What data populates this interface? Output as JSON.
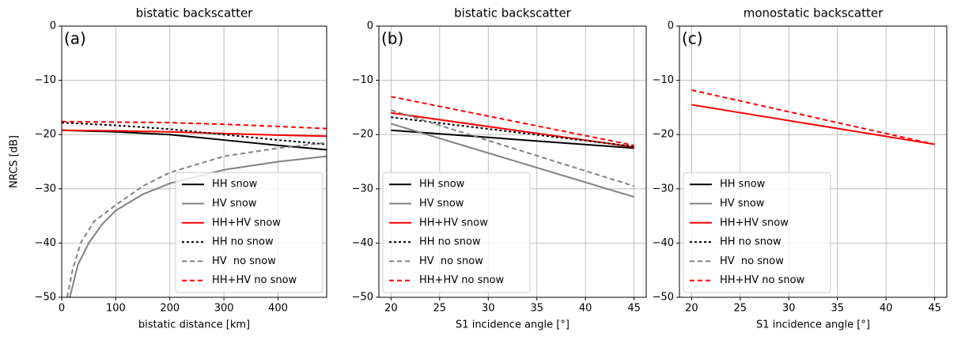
{
  "chart_data": [
    {
      "type": "line",
      "title": "bistatic backscatter",
      "annotation": "(a)",
      "xlabel": "bistatic distance [km]",
      "ylabel": "NRCS [dB]",
      "xlim": [
        0,
        490
      ],
      "xticks": [
        0,
        100,
        200,
        300,
        400
      ],
      "ylim": [
        -50,
        0
      ],
      "yticks": [
        {
          "value": -50,
          "label": "−50"
        },
        {
          "value": -40,
          "label": "−40"
        },
        {
          "value": -30,
          "label": "−30"
        },
        {
          "value": -20,
          "label": "−20"
        },
        {
          "value": -10,
          "label": "−10"
        },
        0
      ],
      "grid": true,
      "legend": "lower right",
      "series": [
        {
          "name": "HH snow",
          "color": "#000000",
          "linestyle": "solid",
          "x": [
            0,
            100,
            200,
            300,
            400,
            490
          ],
          "values": [
            -19.2,
            -19.5,
            -20,
            -21,
            -22,
            -22.8
          ]
        },
        {
          "name": "HV snow",
          "color": "#808080",
          "linestyle": "solid",
          "x": [
            15,
            30,
            50,
            75,
            100,
            150,
            200,
            300,
            400,
            490
          ],
          "values": [
            -50,
            -44,
            -40,
            -36.5,
            -34,
            -31,
            -29,
            -26.5,
            -25,
            -24
          ]
        },
        {
          "name": "HH+HV snow",
          "color": "#ff0000",
          "linestyle": "solid",
          "x": [
            0,
            100,
            200,
            300,
            400,
            490
          ],
          "values": [
            -19.2,
            -19.3,
            -19.5,
            -19.8,
            -20.1,
            -20.3
          ]
        },
        {
          "name": "HH no snow",
          "color": "#000000",
          "linestyle": "dotted",
          "x": [
            0,
            100,
            200,
            300,
            400,
            490
          ],
          "values": [
            -17.8,
            -18.3,
            -19,
            -20,
            -21,
            -21.8
          ]
        },
        {
          "name": "HV  no snow",
          "color": "#808080",
          "linestyle": "dashed",
          "x": [
            10,
            20,
            35,
            60,
            100,
            150,
            200,
            300,
            400,
            490
          ],
          "values": [
            -50,
            -45,
            -40,
            -36,
            -33,
            -29.5,
            -27,
            -24,
            -22.5,
            -21.5
          ]
        },
        {
          "name": "HH+HV no snow",
          "color": "#ff0000",
          "linestyle": "dashed",
          "x": [
            0,
            100,
            200,
            300,
            400,
            490
          ],
          "values": [
            -17.6,
            -17.7,
            -17.8,
            -18.1,
            -18.5,
            -18.9
          ]
        }
      ]
    },
    {
      "type": "line",
      "title": "bistatic backscatter",
      "annotation": "(b)",
      "xlabel": "S1 incidence angle [°]",
      "xlim": [
        18.75,
        46.25
      ],
      "xticks": [
        20,
        25,
        30,
        35,
        40,
        45
      ],
      "ylim": [
        -50,
        0
      ],
      "yticks": [
        {
          "value": -50,
          "label": "−50"
        },
        {
          "value": -40,
          "label": "−40"
        },
        {
          "value": -30,
          "label": "−30"
        },
        {
          "value": -20,
          "label": "−20"
        },
        {
          "value": -10,
          "label": "−10"
        },
        0
      ],
      "grid": true,
      "legend": "lower left",
      "series": [
        {
          "name": "HH snow",
          "color": "#000000",
          "linestyle": "solid",
          "x": [
            20,
            45
          ],
          "values": [
            -19.2,
            -22.5
          ]
        },
        {
          "name": "HV snow",
          "color": "#808080",
          "linestyle": "solid",
          "x": [
            20,
            45
          ],
          "values": [
            -18,
            -31.5
          ]
        },
        {
          "name": "HH+HV snow",
          "color": "#ff0000",
          "linestyle": "solid",
          "x": [
            20,
            45
          ],
          "values": [
            -16,
            -22.3
          ]
        },
        {
          "name": "HH no snow",
          "color": "#000000",
          "linestyle": "dotted",
          "x": [
            20,
            45
          ],
          "values": [
            -16.8,
            -22.2
          ]
        },
        {
          "name": "HV  no snow",
          "color": "#808080",
          "linestyle": "dashed",
          "x": [
            20,
            45
          ],
          "values": [
            -15.5,
            -29.5
          ]
        },
        {
          "name": "HH+HV no snow",
          "color": "#ff0000",
          "linestyle": "dashed",
          "x": [
            20,
            45
          ],
          "values": [
            -13,
            -22
          ]
        }
      ]
    },
    {
      "type": "line",
      "title": "monostatic backscatter",
      "annotation": "(c)",
      "xlabel": "S1 incidence angle [°]",
      "xlim": [
        18.75,
        46.25
      ],
      "xticks": [
        20,
        25,
        30,
        35,
        40,
        45
      ],
      "ylim": [
        -50,
        0
      ],
      "yticks": [
        {
          "value": -50,
          "label": "−50"
        },
        {
          "value": -40,
          "label": "−40"
        },
        {
          "value": -30,
          "label": "−30"
        },
        {
          "value": -20,
          "label": "−20"
        },
        {
          "value": -10,
          "label": "−10"
        },
        0
      ],
      "grid": true,
      "legend": "lower left",
      "series": [
        {
          "name": "HH snow",
          "color": "#000000",
          "linestyle": "solid"
        },
        {
          "name": "HV snow",
          "color": "#808080",
          "linestyle": "solid"
        },
        {
          "name": "HH+HV snow",
          "color": "#ff0000",
          "linestyle": "solid",
          "x": [
            20,
            45
          ],
          "values": [
            -14.5,
            -21.8
          ]
        },
        {
          "name": "HH no snow",
          "color": "#000000",
          "linestyle": "dotted"
        },
        {
          "name": "HV  no snow",
          "color": "#808080",
          "linestyle": "dashed"
        },
        {
          "name": "HH+HV no snow",
          "color": "#ff0000",
          "linestyle": "dashed",
          "x": [
            20,
            45
          ],
          "values": [
            -11.8,
            -21.8
          ]
        }
      ]
    }
  ]
}
